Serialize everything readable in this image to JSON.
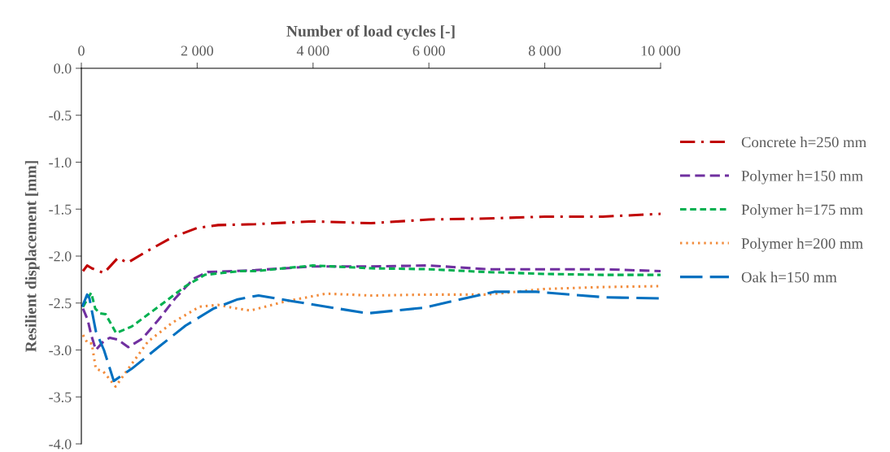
{
  "chart_data": {
    "type": "line",
    "xlabel": "Number of load cycles [-]",
    "ylabel": "Resilient displacement [mm]",
    "xlim": [
      0,
      10000
    ],
    "xticks": [
      0,
      {
        "value": 2000,
        "label": "2 000"
      },
      {
        "value": 4000,
        "label": "4 000"
      },
      {
        "value": 6000,
        "label": "6 000"
      },
      {
        "value": 8000,
        "label": "8 000"
      },
      {
        "value": 10000,
        "label": "10 000"
      }
    ],
    "ylim": [
      -4.0,
      0.0
    ],
    "yticks": [
      {
        "value": 0.0,
        "label": "0.0"
      },
      {
        "value": -0.5,
        "label": "-0.5"
      },
      {
        "value": -1.0,
        "label": "-1.0"
      },
      {
        "value": -1.5,
        "label": "-1.5"
      },
      {
        "value": -2.0,
        "label": "-2.0"
      },
      {
        "value": -2.5,
        "label": "-2.5"
      },
      {
        "value": -3.0,
        "label": "-3.0"
      },
      {
        "value": -3.5,
        "label": "-3.5"
      },
      {
        "value": -4.0,
        "label": "-4.0"
      }
    ],
    "grid": false,
    "legend": "right",
    "series": [
      {
        "name": "Concrete h=250 mm",
        "color": "#c00000",
        "line_style": "dashdot",
        "x": [
          28,
          100,
          180,
          390,
          630,
          800,
          1100,
          1570,
          2000,
          2360,
          3000,
          4000,
          5000,
          6000,
          7000,
          8000,
          9000,
          10000
        ],
        "values": [
          -2.16,
          -2.1,
          -2.13,
          -2.18,
          -2.02,
          -2.07,
          -1.96,
          -1.8,
          -1.7,
          -1.67,
          -1.66,
          -1.63,
          -1.65,
          -1.61,
          -1.6,
          -1.58,
          -1.58,
          -1.55
        ]
      },
      {
        "name": "Polymer h=150 mm",
        "color": "#7030a0",
        "line_style": "dashed",
        "x": [
          28,
          110,
          170,
          250,
          380,
          490,
          630,
          810,
          1050,
          1330,
          1620,
          1940,
          2180,
          3000,
          4000,
          5000,
          6000,
          7000,
          8000,
          9000,
          10000
        ],
        "values": [
          -2.56,
          -2.68,
          -2.84,
          -3.0,
          -2.91,
          -2.87,
          -2.89,
          -2.97,
          -2.88,
          -2.68,
          -2.45,
          -2.24,
          -2.17,
          -2.15,
          -2.11,
          -2.11,
          -2.1,
          -2.14,
          -2.14,
          -2.14,
          -2.16
        ]
      },
      {
        "name": "Polymer h=175 mm",
        "color": "#00b050",
        "line_style": "shortdash",
        "x": [
          28,
          170,
          240,
          320,
          420,
          600,
          870,
          1330,
          1800,
          2130,
          2740,
          3000,
          4000,
          5000,
          6000,
          7000,
          8000,
          9000,
          10000
        ],
        "values": [
          -2.54,
          -2.39,
          -2.56,
          -2.61,
          -2.62,
          -2.82,
          -2.75,
          -2.54,
          -2.32,
          -2.2,
          -2.16,
          -2.16,
          -2.1,
          -2.13,
          -2.14,
          -2.17,
          -2.19,
          -2.2,
          -2.2
        ]
      },
      {
        "name": "Polymer h=200 mm",
        "color": "#f28c3c",
        "line_style": "dotted",
        "x": [
          28,
          110,
          180,
          250,
          380,
          590,
          810,
          1150,
          1570,
          2040,
          2360,
          2700,
          2920,
          3540,
          4230,
          5000,
          6000,
          7000,
          8000,
          9000,
          10000
        ],
        "values": [
          -2.84,
          -2.93,
          -2.93,
          -3.2,
          -3.23,
          -3.39,
          -3.2,
          -2.91,
          -2.71,
          -2.54,
          -2.52,
          -2.56,
          -2.58,
          -2.48,
          -2.4,
          -2.42,
          -2.41,
          -2.41,
          -2.35,
          -2.33,
          -2.32
        ]
      },
      {
        "name": "Oak h=150 mm",
        "color": "#0070c0",
        "line_style": "longdash",
        "x": [
          14,
          100,
          140,
          250,
          390,
          560,
          870,
          1330,
          1800,
          2280,
          2700,
          3060,
          3640,
          4940,
          5910,
          7130,
          7850,
          9060,
          9990
        ],
        "values": [
          -2.54,
          -2.41,
          -2.45,
          -2.8,
          -3.0,
          -3.33,
          -3.2,
          -2.97,
          -2.74,
          -2.56,
          -2.46,
          -2.42,
          -2.48,
          -2.61,
          -2.55,
          -2.38,
          -2.38,
          -2.44,
          -2.45
        ]
      }
    ]
  }
}
